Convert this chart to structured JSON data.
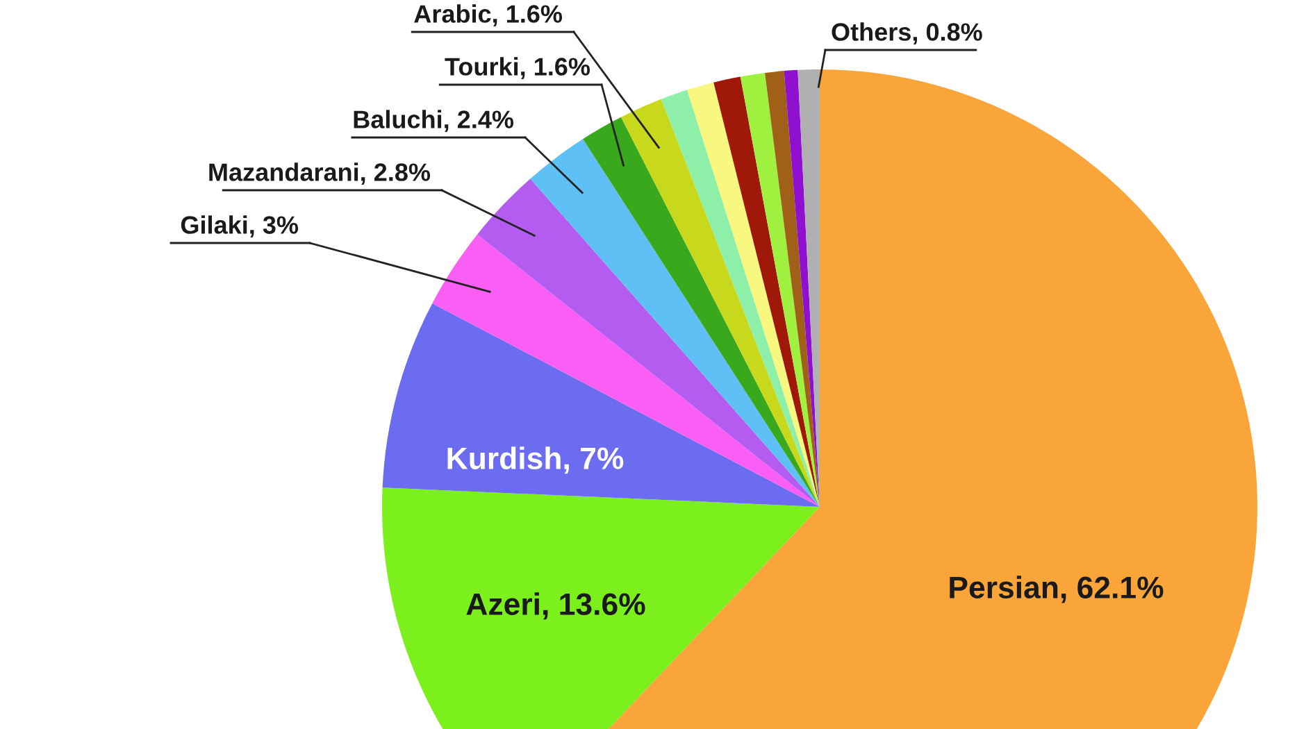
{
  "chart_data": {
    "type": "pie",
    "categories": [
      "Persian",
      "Azeri",
      "Kurdish",
      "Gilaki",
      "Mazandarani",
      "Baluchi",
      "Tourki",
      "Arabic",
      null,
      null,
      null,
      null,
      null,
      null,
      "Others"
    ],
    "values": [
      62.1,
      13.6,
      7,
      3,
      2.8,
      2.4,
      1.6,
      1.6,
      1.0,
      1.0,
      1.0,
      0.9,
      0.7,
      0.5,
      0.8
    ],
    "value_labels": [
      "62.1%",
      "13.6%",
      "7%",
      "3%",
      "2.8%",
      "2.4%",
      "1.6%",
      "1.6%",
      null,
      null,
      null,
      null,
      null,
      null,
      "0.8%"
    ],
    "colors": [
      "#f9a53a",
      "#7cf01c",
      "#6b6cf0",
      "#fb5ef5",
      "#b45cf0",
      "#5ec0f5",
      "#3aa81c",
      "#c8d81c",
      "#8ef0a8",
      "#f8f880",
      "#a01808",
      "#a0f040",
      "#a06018",
      "#9010d0",
      "#b0b0b0"
    ]
  }
}
